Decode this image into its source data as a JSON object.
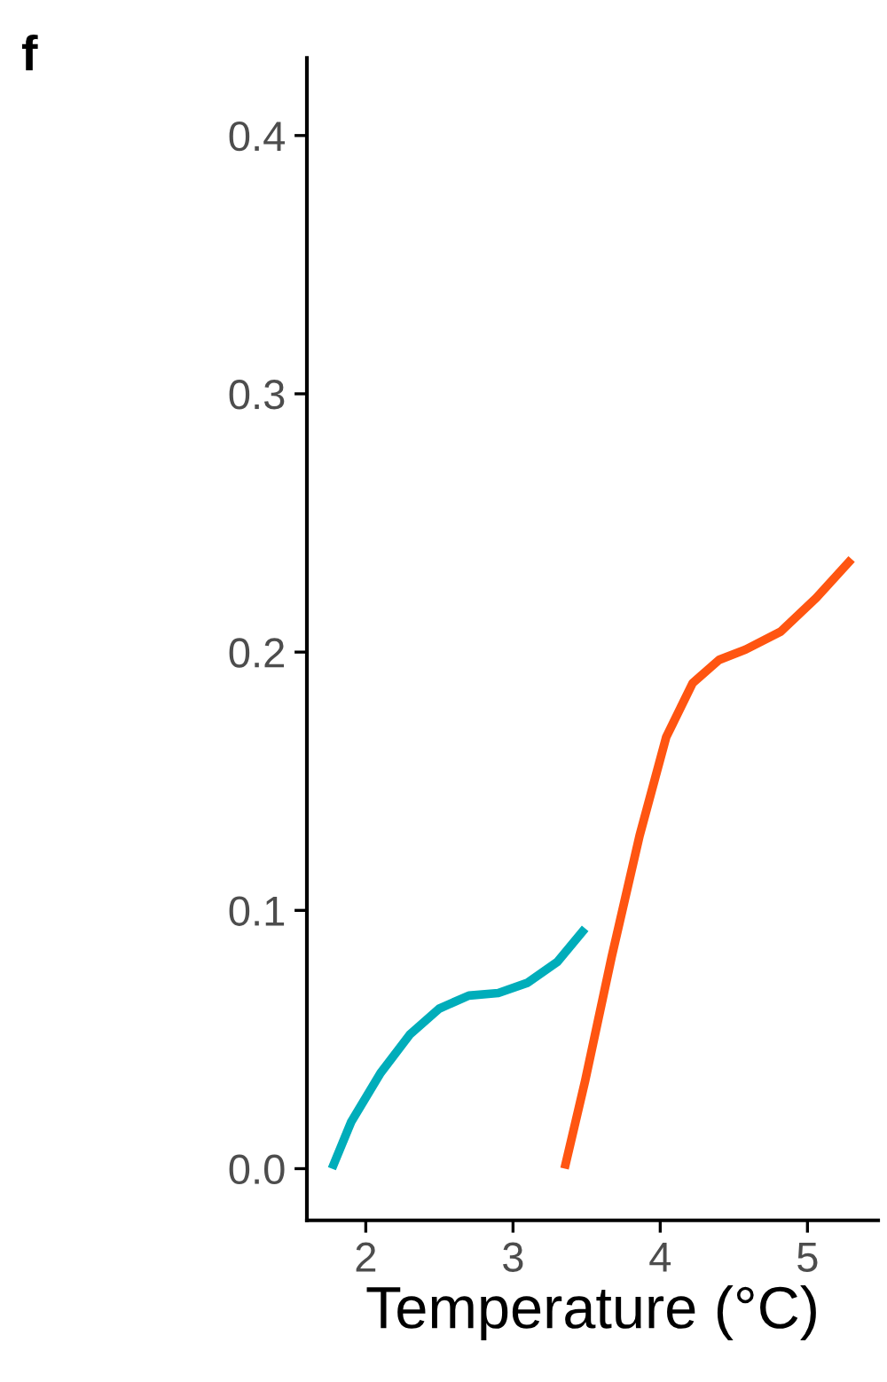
{
  "chart_data": {
    "type": "line",
    "xlabel": "Temperature (°C)",
    "annotations": [
      "f"
    ],
    "xlim": [
      1.6,
      5.48
    ],
    "ylim": [
      -0.02,
      0.43
    ],
    "xticks": [
      2,
      3,
      4,
      5
    ],
    "yticks": [
      {
        "value": 0,
        "label": "0.0"
      },
      0.1,
      0.2,
      0.3,
      0.4
    ],
    "grid": false,
    "marker": "none",
    "line_style": "solid",
    "series": [
      {
        "color": "#00adba",
        "x": [
          1.77,
          1.9,
          2.1,
          2.3,
          2.5,
          2.7,
          2.9,
          3.1,
          3.3,
          3.49
        ],
        "values": [
          0,
          0.018,
          0.037,
          0.052,
          0.062,
          0.067,
          0.068,
          0.072,
          0.08,
          0.093
        ]
      },
      {
        "color": "#ff5511",
        "x": [
          3.35,
          3.49,
          3.67,
          3.86,
          4.04,
          4.22,
          4.4,
          4.58,
          4.82,
          5.06,
          5.3
        ],
        "values": [
          0,
          0.034,
          0.082,
          0.129,
          0.167,
          0.188,
          0.197,
          0.201,
          0.208,
          0.221,
          0.236
        ]
      }
    ]
  }
}
